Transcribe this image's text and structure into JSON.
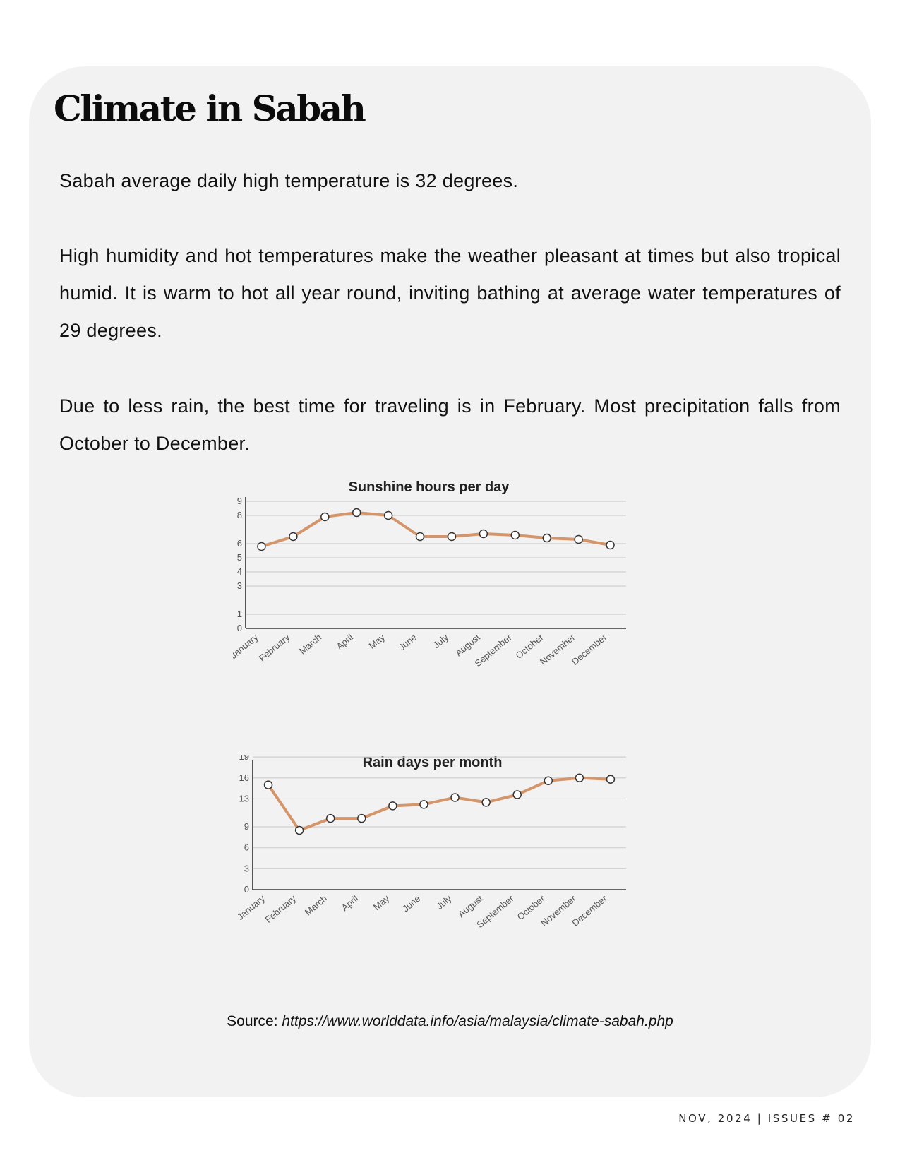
{
  "page": {
    "title": "Climate in Sabah",
    "paragraphs": [
      "Sabah average daily high temperature is 32 degrees.",
      "High humidity and hot temperatures make the weather pleasant at times but also tropical humid. It is warm to hot all year round, inviting bathing at average water temperatures of 29 degrees.",
      "Due to less rain, the best time for traveling is in February. Most precipitation falls from October to December."
    ],
    "source_label": "Source:",
    "source_url": "https://www.worlddata.info/asia/malaysia/climate-sabah.php",
    "footer": "NOV, 2024 | ISSUES # 02"
  },
  "colors": {
    "line": "#d4956a",
    "card_background": "#f2f2f2"
  },
  "chart_data": [
    {
      "type": "line",
      "title": "Sunshine hours per day",
      "categories": [
        "January",
        "February",
        "March",
        "April",
        "May",
        "June",
        "July",
        "August",
        "September",
        "October",
        "November",
        "December"
      ],
      "values": [
        5.8,
        6.5,
        7.9,
        8.2,
        8.0,
        6.5,
        6.5,
        6.7,
        6.6,
        6.4,
        6.3,
        5.9
      ],
      "yticks": [
        0,
        1,
        3,
        4,
        5,
        6,
        8,
        9
      ],
      "ylim": [
        0,
        9
      ],
      "grid": true
    },
    {
      "type": "line",
      "title": "Rain days per month",
      "categories": [
        "January",
        "February",
        "March",
        "April",
        "May",
        "June",
        "July",
        "August",
        "September",
        "October",
        "November",
        "December"
      ],
      "values": [
        15,
        8.5,
        10.2,
        10.2,
        12,
        12.2,
        13.2,
        12.5,
        13.6,
        15.6,
        16,
        15.8
      ],
      "yticks": [
        0,
        3,
        6,
        9,
        13,
        16,
        19
      ],
      "ylim": [
        0,
        18
      ],
      "grid": true
    }
  ]
}
